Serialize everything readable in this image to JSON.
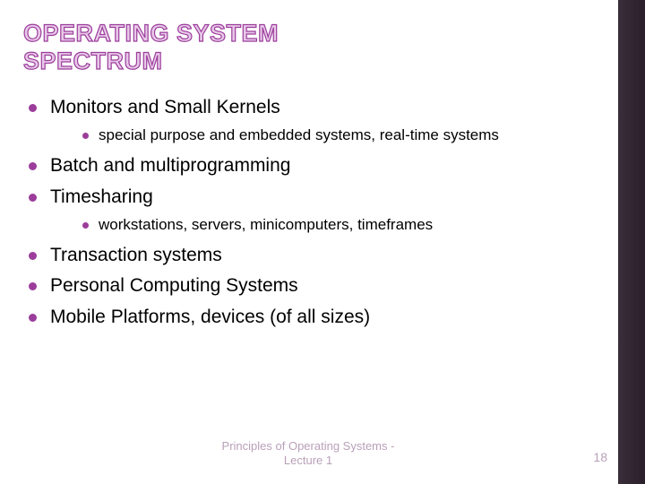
{
  "title_line1": "OPERATING SYSTEM",
  "title_line2": "SPECTRUM",
  "bullets": {
    "b1": "Monitors and Small Kernels",
    "b1_sub1": "special purpose and embedded systems, real-time systems",
    "b2": "Batch and multiprogramming",
    "b3": "Timesharing",
    "b3_sub1": "workstations, servers, minicomputers, timeframes",
    "b4": "Transaction systems",
    "b5": "Personal Computing Systems",
    "b6": "Mobile Platforms, devices (of all sizes)"
  },
  "footer_line1": "Principles of Operating Systems -",
  "footer_line2": "Lecture 1",
  "page_number": "18",
  "colors": {
    "bullet": "#9b3d9b",
    "title_fill": "#e8c8e8",
    "title_stroke": "#9b3d9b",
    "footer_text": "#b9a0b9",
    "sidebar": "#2a1f2a"
  }
}
